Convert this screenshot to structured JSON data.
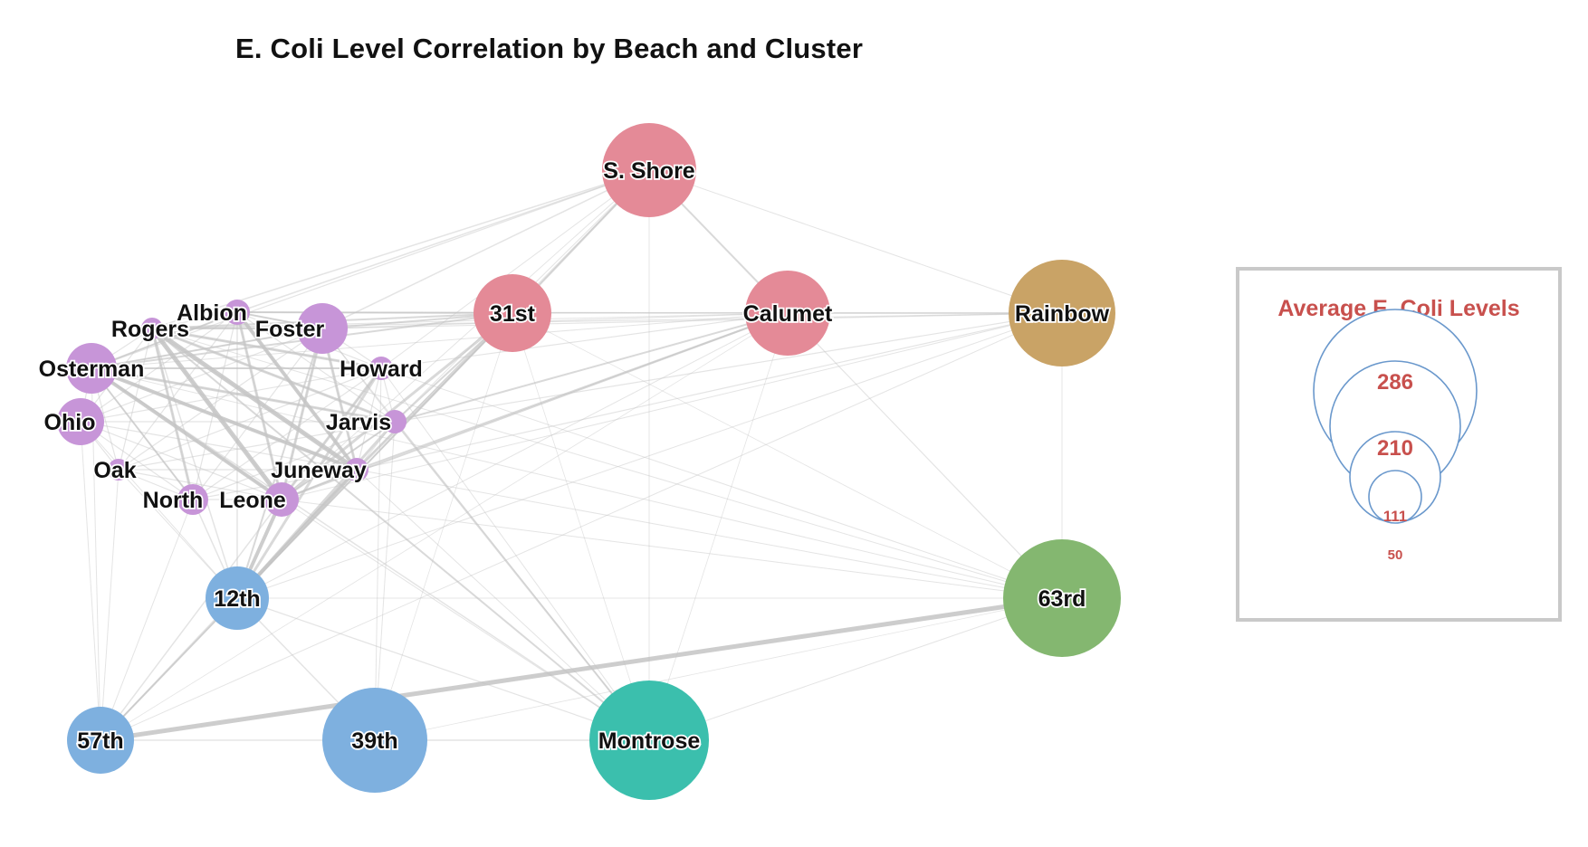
{
  "title": "E. Coli Level Correlation by Beach and Cluster",
  "clusters": {
    "north": "#c795d8",
    "south_shore": "#e48a97",
    "south_blue": "#7eb0df",
    "rainbow": "#c9a366",
    "montrose": "#3bbfad",
    "rd63": "#84b770"
  },
  "nodes": [
    {
      "id": "sshore",
      "label": "S. Shore",
      "cluster": "south_shore"
    },
    {
      "id": "31st",
      "label": "31st",
      "cluster": "south_shore"
    },
    {
      "id": "calumet",
      "label": "Calumet",
      "cluster": "south_shore"
    },
    {
      "id": "rainbow",
      "label": "Rainbow",
      "cluster": "rainbow"
    },
    {
      "id": "63rd",
      "label": "63rd",
      "cluster": "rd63"
    },
    {
      "id": "montrose",
      "label": "Montrose",
      "cluster": "montrose"
    },
    {
      "id": "39th",
      "label": "39th",
      "cluster": "south_blue"
    },
    {
      "id": "57th",
      "label": "57th",
      "cluster": "south_blue"
    },
    {
      "id": "12th",
      "label": "12th",
      "cluster": "south_blue"
    },
    {
      "id": "rogers",
      "label": "Rogers",
      "cluster": "north"
    },
    {
      "id": "albion",
      "label": "Albion",
      "cluster": "north"
    },
    {
      "id": "foster",
      "label": "Foster",
      "cluster": "north"
    },
    {
      "id": "osterman",
      "label": "Osterman",
      "cluster": "north"
    },
    {
      "id": "howard",
      "label": "Howard",
      "cluster": "north"
    },
    {
      "id": "ohio",
      "label": "Ohio",
      "cluster": "north"
    },
    {
      "id": "jarvis",
      "label": "Jarvis",
      "cluster": "north"
    },
    {
      "id": "oak",
      "label": "Oak",
      "cluster": "north"
    },
    {
      "id": "juneway",
      "label": "Juneway",
      "cluster": "north"
    },
    {
      "id": "north",
      "label": "North",
      "cluster": "north"
    },
    {
      "id": "leone",
      "label": "Leone",
      "cluster": "north"
    }
  ],
  "legend": {
    "title": "Average E. Coli Levels",
    "values": [
      "286",
      "210",
      "111",
      "50"
    ],
    "stroke": "#6a98cc",
    "text_color": "#c8504d"
  }
}
